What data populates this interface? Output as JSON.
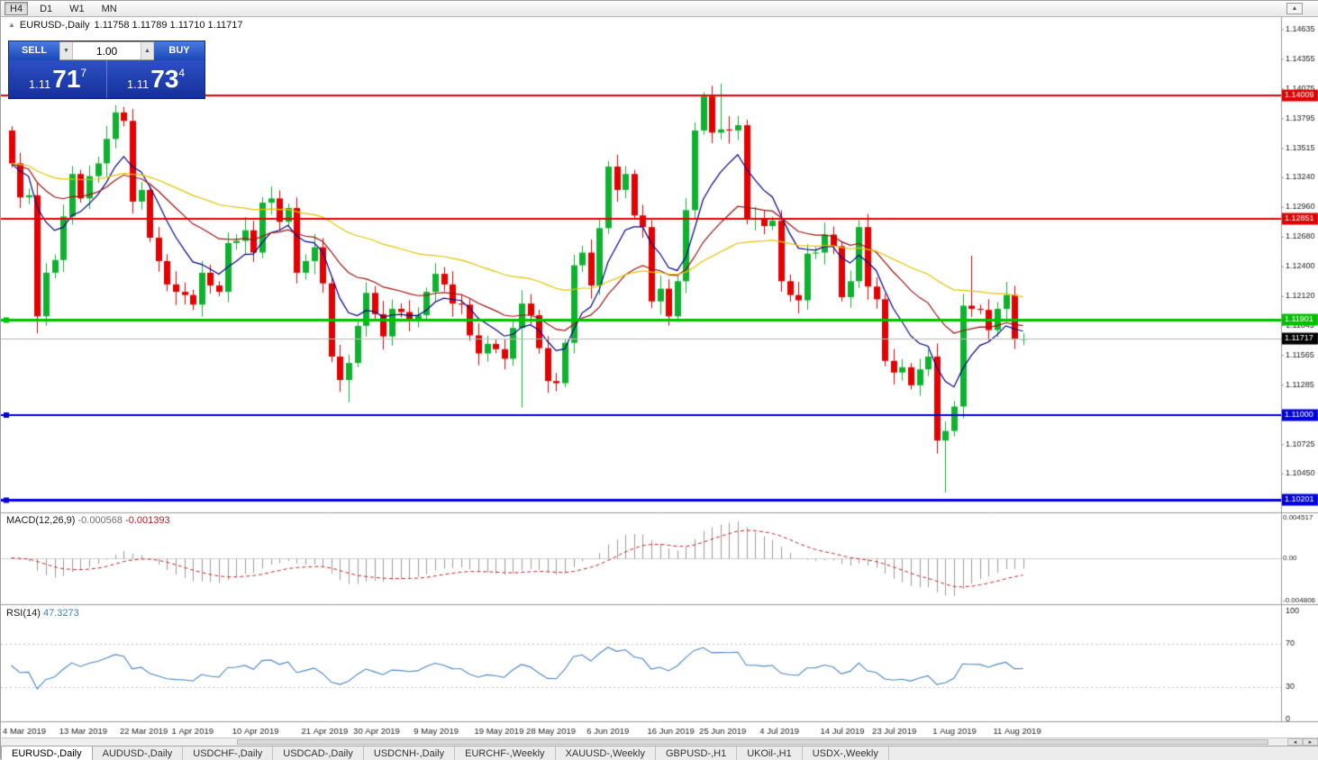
{
  "toolbar": {
    "timeframes": [
      {
        "label": "H4",
        "active": true
      },
      {
        "label": "D1",
        "active": false
      },
      {
        "label": "W1",
        "active": false
      },
      {
        "label": "MN",
        "active": false
      }
    ]
  },
  "icons": {
    "collapse": "▲",
    "spin_down": "▼",
    "spin_up": "▲",
    "scroll_left": "◄",
    "scroll_right": "►",
    "toolbar_up": "▲"
  },
  "window": {
    "title_symbol": "EURUSD-,Daily",
    "title_ohlc": "1.11758 1.11789 1.11710 1.11717"
  },
  "trade_panel": {
    "sell_label": "SELL",
    "buy_label": "BUY",
    "volume": "1.00",
    "bid": {
      "prefix": "1.11",
      "big": "71",
      "sup": "7"
    },
    "ask": {
      "prefix": "1.11",
      "big": "73",
      "sup": "4"
    }
  },
  "indicators": {
    "macd_title": "MACD(12,26,9)",
    "macd_main": "-0.000568",
    "macd_signal": "-0.001393",
    "rsi_title": "RSI(14)",
    "rsi_value": "47.3273"
  },
  "tabs": [
    {
      "label": "EURUSD-,Daily",
      "active": true
    },
    {
      "label": "AUDUSD-,Daily",
      "active": false
    },
    {
      "label": "USDCHF-,Daily",
      "active": false
    },
    {
      "label": "USDCAD-,Daily",
      "active": false
    },
    {
      "label": "USDCNH-,Daily",
      "active": false
    },
    {
      "label": "EURCHF-,Weekly",
      "active": false
    },
    {
      "label": "XAUUSD-,Weekly",
      "active": false
    },
    {
      "label": "GBPUSD-,H1",
      "active": false
    },
    {
      "label": "UKOil-,H1",
      "active": false
    },
    {
      "label": "USDX-,Weekly",
      "active": false
    }
  ],
  "chart_data": {
    "type": "candlestick",
    "symbol": "EURUSD-",
    "timeframe": "Daily",
    "title": "EURUSD-,Daily 1.11758 1.11789 1.11710 1.11717",
    "y_range": [
      1.101,
      1.1468
    ],
    "first_open": 1.1368,
    "closes": [
      1.1337,
      1.1305,
      1.1307,
      1.1193,
      1.1234,
      1.1246,
      1.1287,
      1.1327,
      1.1304,
      1.1325,
      1.1337,
      1.136,
      1.1385,
      1.1377,
      1.1301,
      1.1312,
      1.1267,
      1.1245,
      1.1223,
      1.1216,
      1.1213,
      1.1204,
      1.1234,
      1.1222,
      1.1216,
      1.1262,
      1.1264,
      1.1274,
      1.1253,
      1.13,
      1.1304,
      1.1282,
      1.1295,
      1.1234,
      1.1245,
      1.1258,
      1.1224,
      1.1155,
      1.1133,
      1.1149,
      1.1184,
      1.1215,
      1.1195,
      1.1174,
      1.12,
      1.1197,
      1.119,
      1.1194,
      1.1216,
      1.1233,
      1.1223,
      1.1205,
      1.1204,
      1.1175,
      1.1158,
      1.1167,
      1.1162,
      1.1153,
      1.1182,
      1.1205,
      1.1194,
      1.1163,
      1.1132,
      1.113,
      1.1168,
      1.1241,
      1.1253,
      1.1222,
      1.1276,
      1.1334,
      1.1312,
      1.1327,
      1.1288,
      1.1277,
      1.1207,
      1.1219,
      1.1193,
      1.1226,
      1.1293,
      1.1368,
      1.14,
      1.1366,
      1.1369,
      1.1368,
      1.1373,
      1.1285,
      1.1285,
      1.1278,
      1.1283,
      1.1226,
      1.1213,
      1.1208,
      1.1252,
      1.1253,
      1.127,
      1.1259,
      1.1211,
      1.1226,
      1.1277,
      1.1221,
      1.1209,
      1.1151,
      1.114,
      1.1145,
      1.1128,
      1.1143,
      1.1155,
      1.1076,
      1.1085,
      1.1108,
      1.1203,
      1.12,
      1.1199,
      1.118,
      1.12,
      1.1213,
      1.1171,
      1.11717
    ],
    "wick_overrides": {
      "3": {
        "low": 1.1177
      },
      "12": {
        "high": 1.1392
      },
      "39": {
        "low": 1.1112
      },
      "59": {
        "low": 1.1107
      },
      "82": {
        "high": 1.1412
      },
      "108": {
        "low": 1.1027
      },
      "111": {
        "high": 1.125
      }
    },
    "colors": {
      "up": "#0eb22e",
      "down": "#e60000"
    },
    "moving_averages": [
      {
        "period": 8,
        "color": "#00008b",
        "name": "ma-fast-blue"
      },
      {
        "period": 21,
        "color": "#a01010",
        "name": "ma-mid-red"
      },
      {
        "period": 55,
        "color": "#e6c200",
        "name": "ma-slow-yellow"
      }
    ],
    "levels": [
      {
        "price": 1.14009,
        "label": "1.14009",
        "color": "#e00000",
        "width": 2,
        "anchor": false
      },
      {
        "price": 1.12851,
        "label": "1.12851",
        "color": "#e00000",
        "width": 2,
        "anchor": false
      },
      {
        "price": 1.11901,
        "label": "1.11901",
        "color": "#00c000",
        "width": 3,
        "anchor": true
      },
      {
        "price": 1.11,
        "label": "1.11000",
        "color": "#0000e0",
        "width": 2,
        "anchor": true
      },
      {
        "price": 1.10201,
        "label": "1.10201",
        "color": "#0000e0",
        "width": 3,
        "anchor": true
      }
    ],
    "bid": {
      "price": 1.11717,
      "label": "1.11717"
    },
    "y_axis_ticks": [
      "1.14635",
      "1.14355",
      "1.14075",
      "1.13795",
      "1.13515",
      "1.13240",
      "1.12960",
      "1.12680",
      "1.12400",
      "1.12120",
      "1.11845",
      "1.11565",
      "1.11285",
      "1.10725",
      "1.10450"
    ],
    "macd_axis": [
      {
        "label": "0.004517",
        "value": 0.004517
      },
      {
        "label": "0.00",
        "value": 0
      },
      {
        "label": "-0.004806",
        "value": -0.004806
      }
    ],
    "rsi_axis": [
      {
        "label": "100",
        "value": 100,
        "dotted": false
      },
      {
        "label": "70",
        "value": 70,
        "dotted": true
      },
      {
        "label": "30",
        "value": 30,
        "dotted": true
      },
      {
        "label": "0",
        "value": 0,
        "dotted": false
      }
    ],
    "date_labels": [
      {
        "label": "4 Mar 2019",
        "i": 0
      },
      {
        "label": "13 Mar 2019",
        "i": 7
      },
      {
        "label": "22 Mar 2019",
        "i": 14
      },
      {
        "label": "1 Apr 2019",
        "i": 20
      },
      {
        "label": "10 Apr 2019",
        "i": 27
      },
      {
        "label": "21 Apr 2019",
        "i": 35
      },
      {
        "label": "30 Apr 2019",
        "i": 41
      },
      {
        "label": "9 May 2019",
        "i": 48
      },
      {
        "label": "19 May 2019",
        "i": 55
      },
      {
        "label": "28 May 2019",
        "i": 61
      },
      {
        "label": "6 Jun 2019",
        "i": 68
      },
      {
        "label": "16 Jun 2019",
        "i": 75
      },
      {
        "label": "25 Jun 2019",
        "i": 81
      },
      {
        "label": "4 Jul 2019",
        "i": 88
      },
      {
        "label": "14 Jul 2019",
        "i": 95
      },
      {
        "label": "23 Jul 2019",
        "i": 101
      },
      {
        "label": "1 Aug 2019",
        "i": 108
      },
      {
        "label": "11 Aug 2019",
        "i": 115
      }
    ]
  }
}
